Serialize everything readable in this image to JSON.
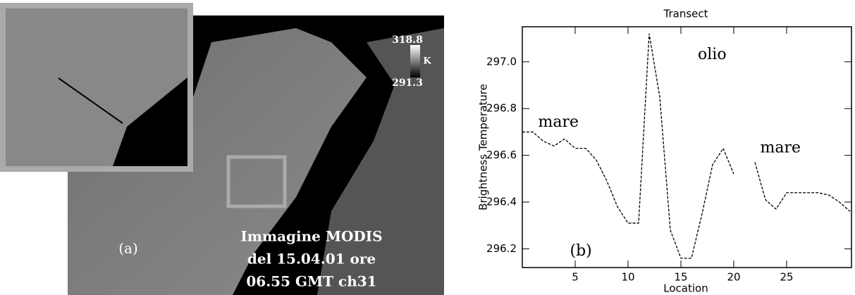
{
  "image_panel": {
    "panel_label": "(a)",
    "caption": [
      "Immagine MODIS",
      "del 15.04.01 ore",
      "06.55 GMT  ch31"
    ],
    "colorbar": {
      "max": 318.8,
      "min": 291.3,
      "unit": "K"
    }
  },
  "chart_data": {
    "type": "line",
    "title": "Transect",
    "xlabel": "Location",
    "ylabel": "Brightness Temperature",
    "x": [
      0,
      1,
      2,
      3,
      4,
      5,
      6,
      7,
      8,
      9,
      10,
      11,
      12,
      13,
      14,
      15,
      16,
      17,
      18,
      19,
      20,
      21,
      22,
      23,
      24,
      25,
      26,
      27,
      28,
      29,
      30,
      31
    ],
    "values": [
      296.7,
      296.7,
      296.66,
      296.64,
      296.67,
      296.63,
      296.63,
      296.58,
      296.49,
      296.38,
      296.31,
      296.31,
      297.12,
      296.85,
      296.28,
      296.16,
      296.16,
      296.35,
      296.56,
      296.63,
      296.52,
      null,
      296.57,
      296.41,
      296.37,
      296.44,
      296.44,
      296.44,
      296.44,
      296.43,
      296.4,
      296.36
    ],
    "color": "#000000",
    "line_style": "dashed",
    "xlim": [
      0,
      31
    ],
    "ylim": [
      296.12,
      297.15
    ],
    "xticks": [
      5,
      10,
      15,
      20,
      25
    ],
    "yticks": [
      296.2,
      296.4,
      296.6,
      296.8,
      {
        "value": 297,
        "label": "297.0"
      }
    ],
    "annotations": [
      {
        "text": "mare",
        "x": 1.5,
        "y": 296.74
      },
      {
        "text": "olio",
        "x": 16.6,
        "y": 297.03
      },
      {
        "text": "mare",
        "x": 22.5,
        "y": 296.63
      },
      {
        "text": "(b)",
        "x": 4.5,
        "y": 296.19
      }
    ]
  }
}
